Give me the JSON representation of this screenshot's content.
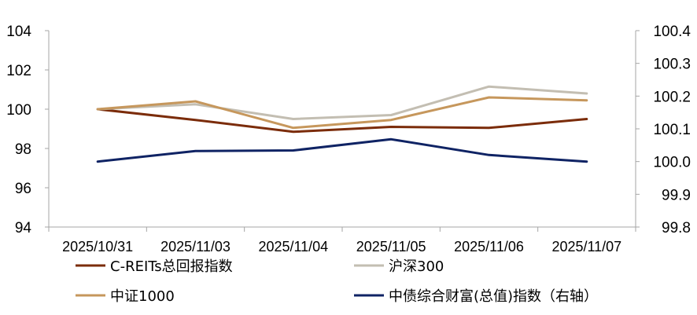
{
  "chart_data": {
    "type": "line",
    "categories": [
      "2025/10/31",
      "2025/11/03",
      "2025/11/04",
      "2025/11/05",
      "2025/11/06",
      "2025/11/07"
    ],
    "y_left": {
      "ylim": [
        94,
        104
      ],
      "ticks": [
        "94",
        "96",
        "98",
        "100",
        "102",
        "104"
      ]
    },
    "y_right": {
      "ylim": [
        99.8,
        100.4
      ],
      "ticks": [
        "99.8",
        "99.9",
        "100.0",
        "100.1",
        "100.2",
        "100.3",
        "100.4"
      ]
    },
    "grid": false,
    "legend_position": "bottom",
    "series": [
      {
        "name": "C-REITs总回报指数",
        "axis": "left",
        "color": "#7B2C0A",
        "values": [
          100.0,
          99.45,
          98.85,
          99.1,
          99.05,
          99.5
        ]
      },
      {
        "name": "沪深300",
        "axis": "left",
        "color": "#C3BEB2",
        "values": [
          100.0,
          100.25,
          99.5,
          99.7,
          101.15,
          100.8
        ]
      },
      {
        "name": "中证1000",
        "axis": "left",
        "color": "#C6975C",
        "values": [
          100.0,
          100.4,
          99.05,
          99.45,
          100.6,
          100.45
        ]
      },
      {
        "name": "中债综合财富(总值)指数（右轴）",
        "axis": "right",
        "color": "#0F2364",
        "values": [
          100.0,
          100.032,
          100.034,
          100.068,
          100.02,
          100.0
        ]
      }
    ]
  }
}
